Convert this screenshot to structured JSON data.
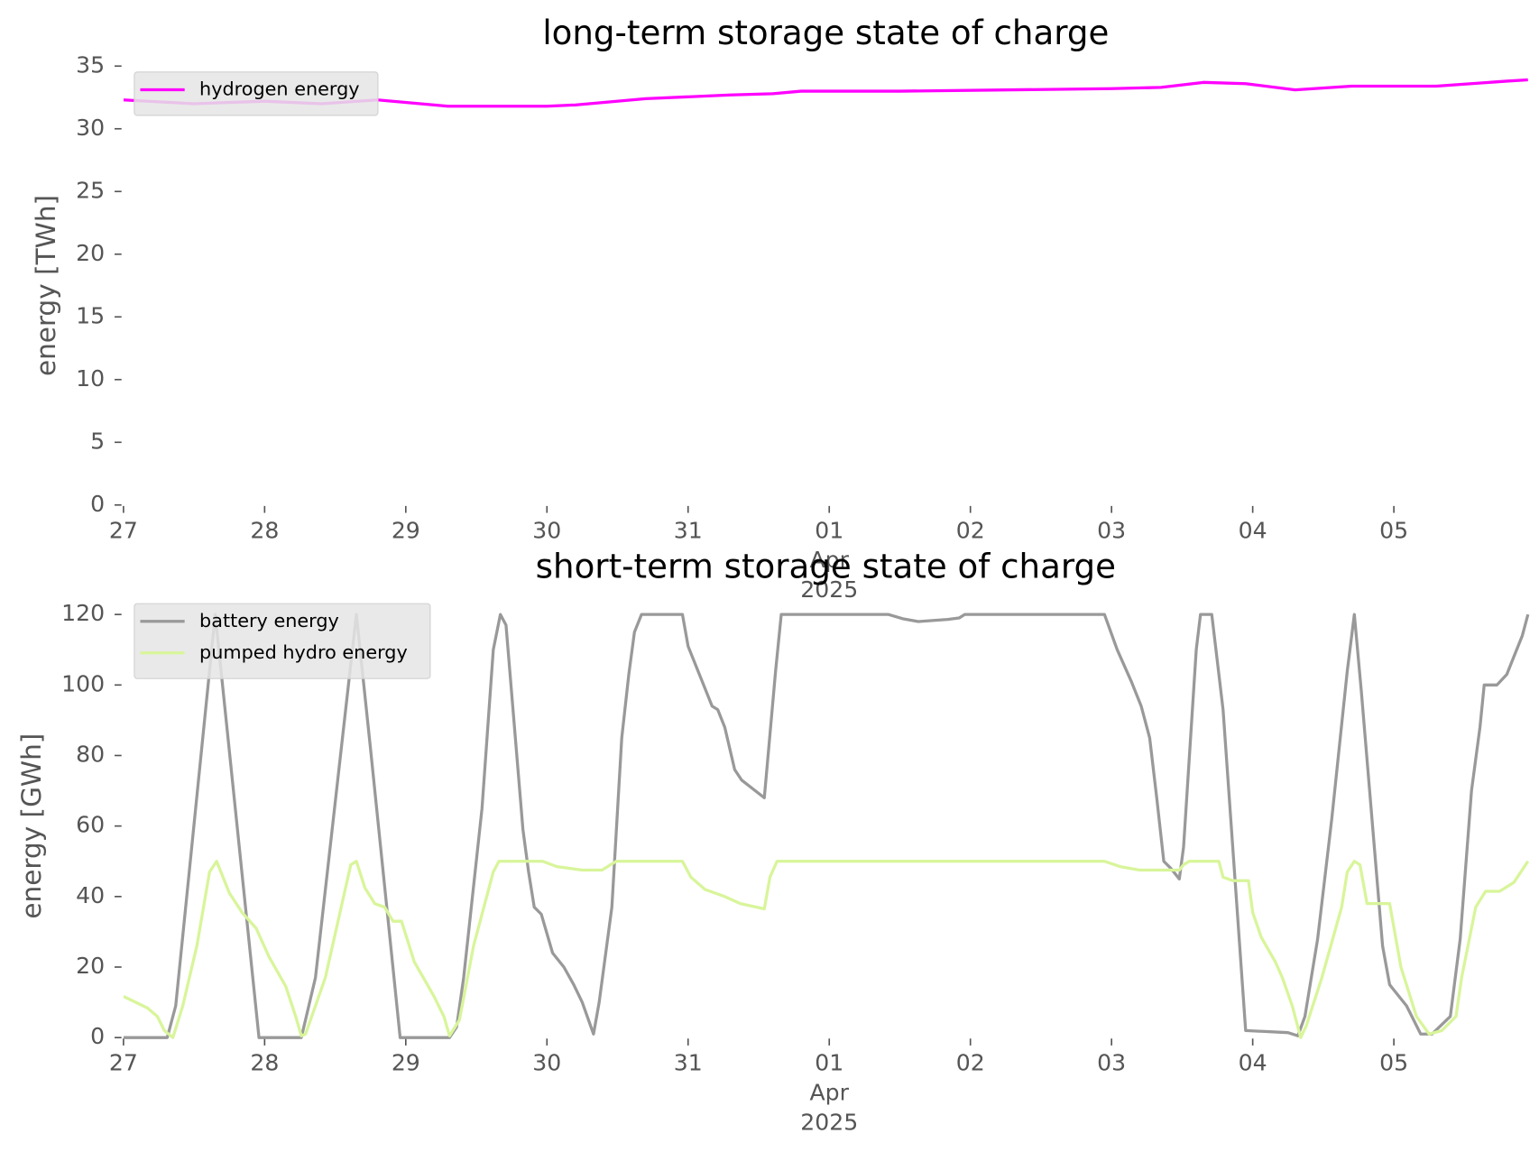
{
  "chart_data": [
    {
      "type": "line",
      "title": "long-term storage state of charge",
      "ylabel": "energy [TWh]",
      "xlim": [
        0,
        9.95
      ],
      "xticks": [
        {
          "value": 0,
          "label": "27"
        },
        {
          "value": 1,
          "label": "28"
        },
        {
          "value": 2,
          "label": "29"
        },
        {
          "value": 3,
          "label": "30"
        },
        {
          "value": 4,
          "label": "31"
        },
        {
          "value": 5,
          "label": "01",
          "sublabels": [
            "Apr",
            "2025"
          ]
        },
        {
          "value": 6,
          "label": "02"
        },
        {
          "value": 7,
          "label": "03"
        },
        {
          "value": 8,
          "label": "04"
        },
        {
          "value": 9,
          "label": "05"
        }
      ],
      "ylim": [
        0,
        35
      ],
      "yticks": [
        0,
        5,
        10,
        15,
        20,
        25,
        30,
        35
      ],
      "legend": "upper left",
      "series": [
        {
          "name": "hydrogen energy",
          "color": "#ff00ff",
          "x": [
            0,
            0.5,
            1.0,
            1.4,
            1.8,
            2.3,
            3.0,
            3.2,
            3.7,
            4.3,
            4.6,
            4.8,
            5.5,
            7.0,
            7.35,
            7.65,
            7.95,
            8.3,
            8.7,
            9.3,
            9.8,
            9.95
          ],
          "values": [
            32.3,
            32.0,
            32.2,
            32.0,
            32.3,
            31.8,
            31.8,
            31.9,
            32.4,
            32.7,
            32.8,
            33.0,
            33.0,
            33.2,
            33.3,
            33.7,
            33.6,
            33.1,
            33.4,
            33.4,
            33.8,
            33.9
          ]
        }
      ]
    },
    {
      "type": "line",
      "title": "short-term storage state of charge",
      "ylabel": "energy [GWh]",
      "xlim": [
        0,
        9.95
      ],
      "xticks": [
        {
          "value": 0,
          "label": "27"
        },
        {
          "value": 1,
          "label": "28"
        },
        {
          "value": 2,
          "label": "29"
        },
        {
          "value": 3,
          "label": "30"
        },
        {
          "value": 4,
          "label": "31"
        },
        {
          "value": 5,
          "label": "01",
          "sublabels": [
            "Apr",
            "2025"
          ]
        },
        {
          "value": 6,
          "label": "02"
        },
        {
          "value": 7,
          "label": "03"
        },
        {
          "value": 8,
          "label": "04"
        },
        {
          "value": 9,
          "label": "05"
        }
      ],
      "ylim": [
        0,
        120
      ],
      "yticks": [
        0,
        20,
        40,
        60,
        80,
        100,
        120
      ],
      "legend": "upper left",
      "series": [
        {
          "name": "battery energy",
          "color": "#999999",
          "x": [
            0,
            0.31,
            0.37,
            0.65,
            0.96,
            1.26,
            1.36,
            1.65,
            1.75,
            1.96,
            2.31,
            2.36,
            2.41,
            2.54,
            2.62,
            2.67,
            2.71,
            2.83,
            2.87,
            2.91,
            2.96,
            3.04,
            3.12,
            3.19,
            3.25,
            3.33,
            3.37,
            3.46,
            3.53,
            3.58,
            3.62,
            3.67,
            3.96,
            4.0,
            4.17,
            4.21,
            4.26,
            4.33,
            4.38,
            4.54,
            4.62,
            4.66,
            5.42,
            5.52,
            5.63,
            5.84,
            5.92,
            5.96,
            6.95,
            7.04,
            7.14,
            7.21,
            7.27,
            7.32,
            7.37,
            7.42,
            7.48,
            7.51,
            7.6,
            7.63,
            7.71,
            7.79,
            7.95,
            8.25,
            8.32,
            8.37,
            8.46,
            8.56,
            8.67,
            8.72,
            8.77,
            8.92,
            8.97,
            9.01,
            9.09,
            9.19,
            9.27,
            9.4,
            9.47,
            9.55,
            9.61,
            9.64,
            9.73,
            9.8,
            9.85,
            9.91,
            9.95
          ],
          "values": [
            0,
            0,
            9,
            120,
            0,
            0,
            17,
            120,
            82,
            0,
            0,
            3,
            17,
            65,
            110,
            120,
            117,
            59,
            47,
            37,
            35,
            24,
            20,
            15,
            10,
            1,
            10,
            37,
            85,
            103,
            115,
            120,
            120,
            111,
            94,
            93,
            88,
            76,
            73,
            68,
            104,
            120,
            120,
            118.8,
            118,
            118.6,
            119,
            120,
            120,
            110,
            101,
            94,
            85,
            68,
            50,
            48,
            45,
            54,
            110,
            120,
            120,
            93,
            2,
            1.4,
            0.5,
            6,
            28,
            62,
            104,
            120,
            98,
            26,
            15,
            13,
            9,
            1,
            1,
            6,
            28,
            70,
            88,
            100,
            100,
            103,
            108,
            114,
            120
          ]
        },
        {
          "name": "pumped hydro energy",
          "color": "#d8f59a",
          "x": [
            0,
            0.17,
            0.24,
            0.29,
            0.35,
            0.42,
            0.52,
            0.61,
            0.66,
            0.75,
            0.84,
            0.94,
            1.03,
            1.15,
            1.22,
            1.26,
            1.29,
            1.43,
            1.61,
            1.65,
            1.71,
            1.78,
            1.85,
            1.91,
            1.97,
            2.06,
            2.2,
            2.27,
            2.31,
            2.38,
            2.48,
            2.62,
            2.66,
            2.97,
            3.07,
            3.25,
            3.39,
            3.49,
            3.96,
            4.02,
            4.12,
            4.26,
            4.37,
            4.54,
            4.58,
            4.63,
            6.95,
            7.06,
            7.2,
            7.48,
            7.51,
            7.55,
            7.76,
            7.79,
            7.86,
            7.97,
            8.0,
            8.06,
            8.16,
            8.21,
            8.28,
            8.34,
            8.38,
            8.49,
            8.63,
            8.67,
            8.72,
            8.76,
            8.81,
            8.97,
            9.05,
            9.16,
            9.25,
            9.34,
            9.44,
            9.48,
            9.58,
            9.65,
            9.75,
            9.85,
            9.95
          ],
          "values": [
            11.7,
            8.4,
            6,
            2,
            0,
            9,
            26,
            47,
            50,
            41,
            35.5,
            31,
            23,
            14.5,
            6,
            0.5,
            1,
            17,
            49,
            50,
            42.5,
            38,
            37,
            33,
            33,
            21.5,
            11.7,
            6,
            0.5,
            5,
            26,
            47,
            50,
            50,
            48.5,
            47.5,
            47.5,
            50,
            50,
            45.5,
            42,
            40,
            38,
            36.5,
            45.5,
            50,
            50,
            48.5,
            47.5,
            47.5,
            49,
            50,
            50,
            45.5,
            44.5,
            44.5,
            35.5,
            28.5,
            21.5,
            17,
            9,
            0,
            3.4,
            17,
            37,
            47,
            50,
            49,
            38,
            38,
            20,
            6,
            1,
            2,
            6,
            17,
            37,
            41.5,
            41.5,
            44,
            50
          ]
        }
      ]
    }
  ]
}
